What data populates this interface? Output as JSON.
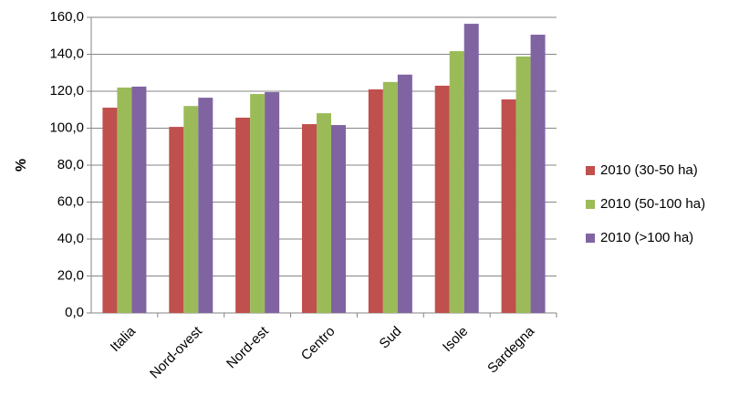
{
  "chart_data": {
    "type": "bar",
    "ylabel": "%",
    "categories": [
      "Italia",
      "Nord-ovest",
      "Nord-est",
      "Centro",
      "Sud",
      "Isole",
      "Sardegna"
    ],
    "series": [
      {
        "name": "2010 (30-50 ha)",
        "color": "#c0504d",
        "values": [
          111.1,
          100.7,
          105.7,
          102.2,
          121.0,
          123.0,
          115.6
        ]
      },
      {
        "name": "2010 (50-100  ha)",
        "color": "#9bbb59",
        "values": [
          122.0,
          112.0,
          118.5,
          108.1,
          125.0,
          141.7,
          138.8
        ]
      },
      {
        "name": "2010 (>100  ha)",
        "color": "#8064a2",
        "values": [
          122.5,
          116.5,
          119.5,
          101.7,
          129.0,
          156.5,
          150.6
        ]
      }
    ],
    "ylim": [
      0,
      160
    ],
    "yticks": [
      {
        "value": 0,
        "label": "0,0"
      },
      {
        "value": 20,
        "label": "20,0"
      },
      {
        "value": 40,
        "label": "40,0"
      },
      {
        "value": 60,
        "label": "60,0"
      },
      {
        "value": 80,
        "label": "80,0"
      },
      {
        "value": 100,
        "label": "100,0"
      },
      {
        "value": 120,
        "label": "120,0"
      },
      {
        "value": 140,
        "label": "140,0"
      },
      {
        "value": 160,
        "label": "160,0"
      }
    ],
    "grid": true,
    "legend": "right"
  }
}
